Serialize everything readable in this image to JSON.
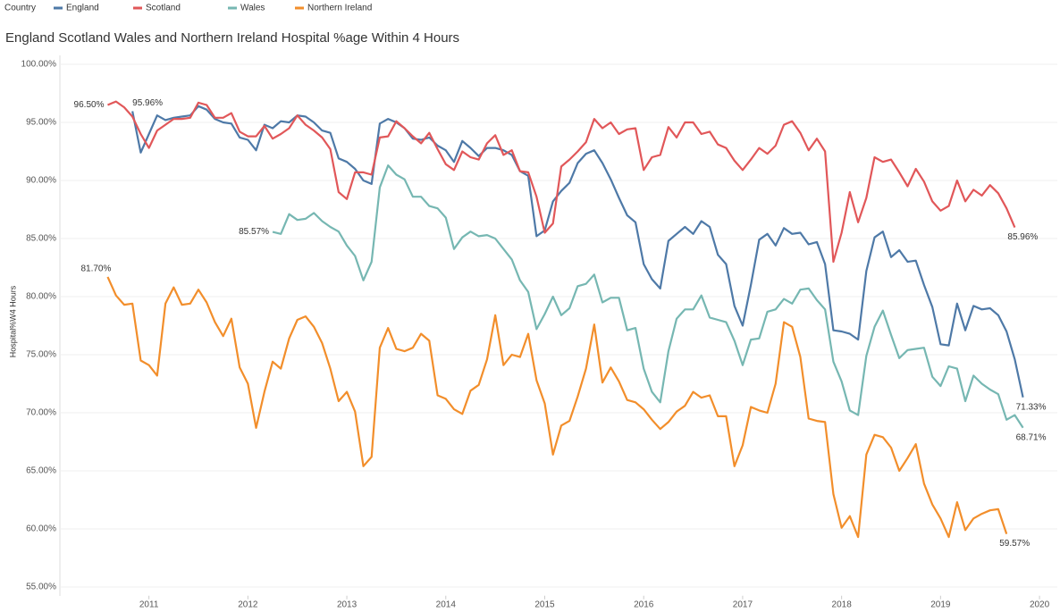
{
  "chart_data": {
    "type": "line",
    "title": "England Scotland Wales and Northern Ireland Hospital %age Within 4 Hours",
    "legend_title": "Country",
    "ylabel": "Hospital%W4 Hours",
    "grid": true,
    "legend": "top",
    "xlim": [
      2010.1,
      2020.18
    ],
    "xticks": [
      2011,
      2012,
      2013,
      2014,
      2015,
      2016,
      2017,
      2018,
      2019,
      2020
    ],
    "ylim": [
      54.25,
      100.75
    ],
    "yticks": [
      {
        "value": 55,
        "label": "55.00%"
      },
      {
        "value": 60,
        "label": "60.00%"
      },
      {
        "value": 65,
        "label": "65.00%"
      },
      {
        "value": 70,
        "label": "70.00%"
      },
      {
        "value": 75,
        "label": "75.00%"
      },
      {
        "value": 80,
        "label": "80.00%"
      },
      {
        "value": 85,
        "label": "85.00%"
      },
      {
        "value": 90,
        "label": "90.00%"
      },
      {
        "value": 95,
        "label": "95.00%"
      },
      {
        "value": 100,
        "label": "100.00%"
      }
    ],
    "x": [
      2010.583,
      2010.667,
      2010.75,
      2010.833,
      2010.917,
      2011,
      2011.083,
      2011.167,
      2011.25,
      2011.333,
      2011.417,
      2011.5,
      2011.583,
      2011.667,
      2011.75,
      2011.833,
      2011.917,
      2012,
      2012.083,
      2012.167,
      2012.25,
      2012.333,
      2012.417,
      2012.5,
      2012.583,
      2012.667,
      2012.75,
      2012.833,
      2012.917,
      2013,
      2013.083,
      2013.167,
      2013.25,
      2013.333,
      2013.417,
      2013.5,
      2013.583,
      2013.667,
      2013.75,
      2013.833,
      2013.917,
      2014,
      2014.083,
      2014.167,
      2014.25,
      2014.333,
      2014.417,
      2014.5,
      2014.583,
      2014.667,
      2014.75,
      2014.833,
      2014.917,
      2015,
      2015.083,
      2015.167,
      2015.25,
      2015.333,
      2015.417,
      2015.5,
      2015.583,
      2015.667,
      2015.75,
      2015.833,
      2015.917,
      2016,
      2016.083,
      2016.167,
      2016.25,
      2016.333,
      2016.417,
      2016.5,
      2016.583,
      2016.667,
      2016.75,
      2016.833,
      2016.917,
      2017,
      2017.083,
      2017.167,
      2017.25,
      2017.333,
      2017.417,
      2017.5,
      2017.583,
      2017.667,
      2017.75,
      2017.833,
      2017.917,
      2018,
      2018.083,
      2018.167,
      2018.25,
      2018.333,
      2018.417,
      2018.5,
      2018.583,
      2018.667,
      2018.75,
      2018.833,
      2018.917,
      2019,
      2019.083,
      2019.167,
      2019.25,
      2019.333,
      2019.417,
      2019.5,
      2019.583,
      2019.667,
      2019.75,
      2019.833
    ],
    "series": [
      {
        "name": "England",
        "color": "#4e79a7",
        "values": [
          null,
          null,
          null,
          95.96,
          92.4,
          94,
          95.6,
          95.2,
          95.4,
          95.5,
          95.6,
          96.4,
          96.1,
          95.3,
          95,
          94.9,
          93.7,
          93.5,
          92.6,
          94.8,
          94.5,
          95.1,
          95,
          95.6,
          95.5,
          95,
          94.3,
          94.1,
          91.9,
          91.6,
          91,
          90,
          89.7,
          94.9,
          95.3,
          95,
          94.5,
          93.6,
          93.5,
          93.7,
          93,
          92.6,
          91.6,
          93.4,
          92.8,
          92.1,
          92.8,
          92.8,
          92.6,
          92.2,
          90.8,
          90.4,
          85.2,
          85.7,
          88.2,
          89.1,
          89.8,
          91.5,
          92.3,
          92.6,
          91.5,
          90.1,
          88.5,
          87,
          86.4,
          82.8,
          81.5,
          80.7,
          84.8,
          85.4,
          86,
          85.4,
          86.5,
          86,
          83.6,
          82.8,
          79.2,
          77.5,
          81,
          84.9,
          85.4,
          84.4,
          85.9,
          85.4,
          85.5,
          84.5,
          84.7,
          82.8,
          77.1,
          77,
          76.8,
          76.3,
          82.2,
          85.1,
          85.6,
          83.4,
          84,
          83,
          83.1,
          81,
          79.1,
          75.9,
          75.8,
          79.4,
          77.1,
          79.2,
          78.9,
          79,
          78.4,
          77,
          74.6,
          71.33
        ],
        "value_labels": [
          null,
          null,
          null,
          "95.96%",
          null,
          null,
          null,
          null,
          null,
          null,
          null,
          null,
          null,
          null,
          null,
          null,
          null,
          null,
          null,
          null,
          null,
          null,
          null,
          null,
          null,
          null,
          null,
          null,
          null,
          null,
          null,
          null,
          null,
          null,
          null,
          null,
          null,
          null,
          null,
          null,
          null,
          null,
          null,
          null,
          null,
          null,
          null,
          null,
          null,
          null,
          null,
          null,
          null,
          null,
          null,
          null,
          null,
          null,
          null,
          null,
          null,
          null,
          null,
          null,
          null,
          null,
          null,
          null,
          null,
          null,
          null,
          null,
          null,
          null,
          null,
          null,
          null,
          null,
          null,
          null,
          null,
          null,
          null,
          null,
          null,
          null,
          null,
          null,
          null,
          null,
          null,
          null,
          null,
          null,
          null,
          null,
          null,
          null,
          null,
          null,
          null,
          null,
          null,
          null,
          null,
          null,
          null,
          null,
          null,
          null,
          null,
          "71.33%"
        ]
      },
      {
        "name": "Scotland",
        "color": "#e15759",
        "values": [
          96.5,
          96.8,
          96.3,
          95.5,
          94,
          92.8,
          94.3,
          94.8,
          95.3,
          95.3,
          95.4,
          96.7,
          96.5,
          95.4,
          95.4,
          95.8,
          94.2,
          93.8,
          93.8,
          94.7,
          93.6,
          94,
          94.5,
          95.6,
          94.8,
          94.3,
          93.7,
          92.7,
          89,
          88.4,
          90.7,
          90.7,
          90.5,
          93.7,
          93.8,
          95.1,
          94.5,
          93.8,
          93.2,
          94.1,
          92.7,
          91.4,
          90.9,
          92.5,
          92,
          91.8,
          93.2,
          93.9,
          92.2,
          92.6,
          90.8,
          90.7,
          88.6,
          85.5,
          86.3,
          91.2,
          91.8,
          92.5,
          93.3,
          95.3,
          94.5,
          95,
          94,
          94.4,
          94.5,
          90.9,
          92,
          92.2,
          94.6,
          93.7,
          95,
          95,
          94,
          94.2,
          93.1,
          92.8,
          91.7,
          90.9,
          91.8,
          92.8,
          92.3,
          93,
          94.8,
          95.1,
          94.1,
          92.6,
          93.6,
          92.5,
          83,
          85.5,
          89,
          86.4,
          88.5,
          92,
          91.6,
          91.8,
          90.7,
          89.5,
          91,
          89.9,
          88.2,
          87.4,
          87.8,
          90,
          88.2,
          89.2,
          88.7,
          89.6,
          88.9,
          87.6,
          85.96,
          null
        ],
        "value_labels": [
          "96.50%",
          null,
          null,
          null,
          null,
          null,
          null,
          null,
          null,
          null,
          null,
          null,
          null,
          null,
          null,
          null,
          null,
          null,
          null,
          null,
          null,
          null,
          null,
          null,
          null,
          null,
          null,
          null,
          null,
          null,
          null,
          null,
          null,
          null,
          null,
          null,
          null,
          null,
          null,
          null,
          null,
          null,
          null,
          null,
          null,
          null,
          null,
          null,
          null,
          null,
          null,
          null,
          null,
          null,
          null,
          null,
          null,
          null,
          null,
          null,
          null,
          null,
          null,
          null,
          null,
          null,
          null,
          null,
          null,
          null,
          null,
          null,
          null,
          null,
          null,
          null,
          null,
          null,
          null,
          null,
          null,
          null,
          null,
          null,
          null,
          null,
          null,
          null,
          null,
          null,
          null,
          null,
          null,
          null,
          null,
          null,
          null,
          null,
          null,
          null,
          null,
          null,
          null,
          null,
          null,
          null,
          null,
          null,
          null,
          null,
          "85.96%",
          null
        ]
      },
      {
        "name": "Wales",
        "color": "#76b7b2",
        "values": [
          null,
          null,
          null,
          null,
          null,
          null,
          null,
          null,
          null,
          null,
          null,
          null,
          null,
          null,
          null,
          null,
          null,
          null,
          null,
          null,
          85.57,
          85.4,
          87.1,
          86.6,
          86.7,
          87.2,
          86.5,
          86,
          85.6,
          84.4,
          83.5,
          81.4,
          83,
          89.4,
          91.3,
          90.5,
          90.1,
          88.6,
          88.6,
          87.8,
          87.6,
          86.8,
          84.1,
          85.1,
          85.6,
          85.2,
          85.3,
          85,
          84.1,
          83.2,
          81.4,
          80.4,
          77.2,
          78.5,
          80,
          78.4,
          79,
          80.9,
          81.1,
          81.9,
          79.5,
          79.9,
          79.9,
          77.1,
          77.3,
          73.8,
          71.8,
          70.9,
          75.3,
          78.1,
          78.9,
          78.9,
          80.1,
          78.2,
          78,
          77.8,
          76.2,
          74.1,
          76.3,
          76.4,
          78.7,
          78.9,
          79.8,
          79.4,
          80.6,
          80.7,
          79.7,
          78.9,
          74.4,
          72.7,
          70.2,
          69.8,
          74.9,
          77.4,
          78.8,
          76.7,
          74.7,
          75.4,
          75.5,
          75.6,
          73.1,
          72.3,
          74,
          73.8,
          71,
          73.2,
          72.5,
          72,
          71.6,
          69.4,
          69.8,
          68.71
        ],
        "value_labels": [
          null,
          null,
          null,
          null,
          null,
          null,
          null,
          null,
          null,
          null,
          null,
          null,
          null,
          null,
          null,
          null,
          null,
          null,
          null,
          null,
          "85.57%",
          null,
          null,
          null,
          null,
          null,
          null,
          null,
          null,
          null,
          null,
          null,
          null,
          null,
          null,
          null,
          null,
          null,
          null,
          null,
          null,
          null,
          null,
          null,
          null,
          null,
          null,
          null,
          null,
          null,
          null,
          null,
          null,
          null,
          null,
          null,
          null,
          null,
          null,
          null,
          null,
          null,
          null,
          null,
          null,
          null,
          null,
          null,
          null,
          null,
          null,
          null,
          null,
          null,
          null,
          null,
          null,
          null,
          null,
          null,
          null,
          null,
          null,
          null,
          null,
          null,
          null,
          null,
          null,
          null,
          null,
          null,
          null,
          null,
          null,
          null,
          null,
          null,
          null,
          null,
          null,
          null,
          null,
          null,
          null,
          null,
          null,
          null,
          null,
          null,
          null,
          "68.71%"
        ]
      },
      {
        "name": "Northern Ireland",
        "color": "#f28e2b",
        "values": [
          81.7,
          80.1,
          79.3,
          79.4,
          74.5,
          74.1,
          73.2,
          79.4,
          80.8,
          79.3,
          79.4,
          80.6,
          79.5,
          77.8,
          76.6,
          78.1,
          73.9,
          72.5,
          68.7,
          71.8,
          74.4,
          73.8,
          76.4,
          78,
          78.3,
          77.4,
          76,
          73.8,
          71,
          71.8,
          70.1,
          65.4,
          66.2,
          75.6,
          77.3,
          75.5,
          75.3,
          75.6,
          76.8,
          76.2,
          71.5,
          71.2,
          70.3,
          69.9,
          71.9,
          72.4,
          74.6,
          78.4,
          74.1,
          75,
          74.8,
          76.8,
          72.8,
          70.8,
          66.4,
          68.9,
          69.3,
          71.4,
          73.8,
          77.6,
          72.6,
          73.9,
          72.7,
          71.1,
          70.9,
          70.3,
          69.4,
          68.6,
          69.2,
          70.1,
          70.6,
          71.8,
          71.3,
          71.5,
          69.7,
          69.7,
          65.4,
          67.2,
          70.5,
          70.2,
          70,
          72.5,
          77.8,
          77.4,
          74.8,
          69.5,
          69.3,
          69.2,
          63,
          60.1,
          61.1,
          59.3,
          66.4,
          68.1,
          67.9,
          67,
          65,
          66.1,
          67.3,
          63.9,
          62.1,
          60.9,
          59.3,
          62.3,
          59.9,
          60.9,
          61.3,
          61.6,
          61.7,
          59.57,
          null,
          null
        ],
        "value_labels": [
          "81.70%",
          null,
          null,
          null,
          null,
          null,
          null,
          null,
          null,
          null,
          null,
          null,
          null,
          null,
          null,
          null,
          null,
          null,
          null,
          null,
          null,
          null,
          null,
          null,
          null,
          null,
          null,
          null,
          null,
          null,
          null,
          null,
          null,
          null,
          null,
          null,
          null,
          null,
          null,
          null,
          null,
          null,
          null,
          null,
          null,
          null,
          null,
          null,
          null,
          null,
          null,
          null,
          null,
          null,
          null,
          null,
          null,
          null,
          null,
          null,
          null,
          null,
          null,
          null,
          null,
          null,
          null,
          null,
          null,
          null,
          null,
          null,
          null,
          null,
          null,
          null,
          null,
          null,
          null,
          null,
          null,
          null,
          null,
          null,
          null,
          null,
          null,
          null,
          null,
          null,
          null,
          null,
          null,
          null,
          null,
          null,
          null,
          null,
          null,
          null,
          null,
          null,
          null,
          null,
          null,
          null,
          null,
          null,
          null,
          "59.57%",
          null,
          null
        ]
      }
    ]
  }
}
